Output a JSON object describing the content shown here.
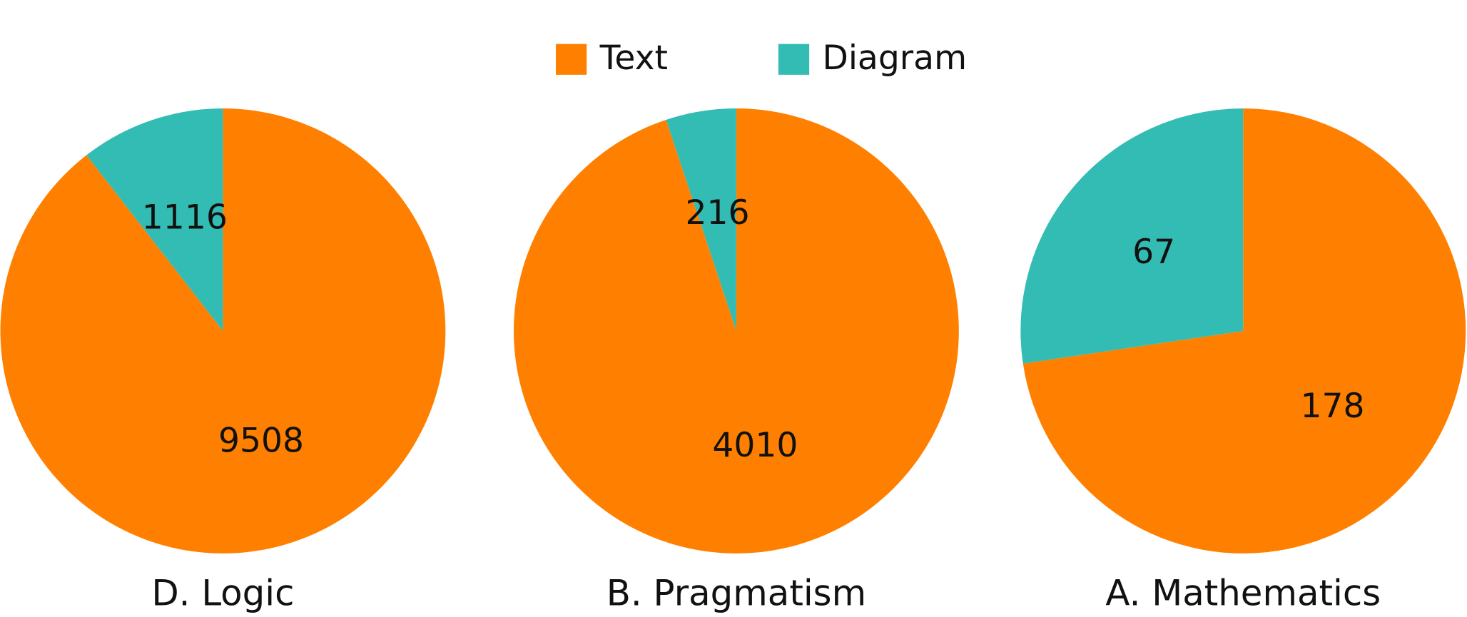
{
  "chart_data": [
    {
      "type": "pie",
      "title": "D. Logic",
      "categories": [
        "Text",
        "Diagram"
      ],
      "values": [
        9508,
        1116
      ],
      "colors": [
        "#ff8000",
        "#33bcb3"
      ]
    },
    {
      "type": "pie",
      "title": "B. Pragmatism",
      "categories": [
        "Text",
        "Diagram"
      ],
      "values": [
        4010,
        216
      ],
      "colors": [
        "#ff8000",
        "#33bcb3"
      ]
    },
    {
      "type": "pie",
      "title": "A. Mathematics",
      "categories": [
        "Text",
        "Diagram"
      ],
      "values": [
        178,
        67
      ],
      "colors": [
        "#ff8000",
        "#33bcb3"
      ]
    }
  ]
}
